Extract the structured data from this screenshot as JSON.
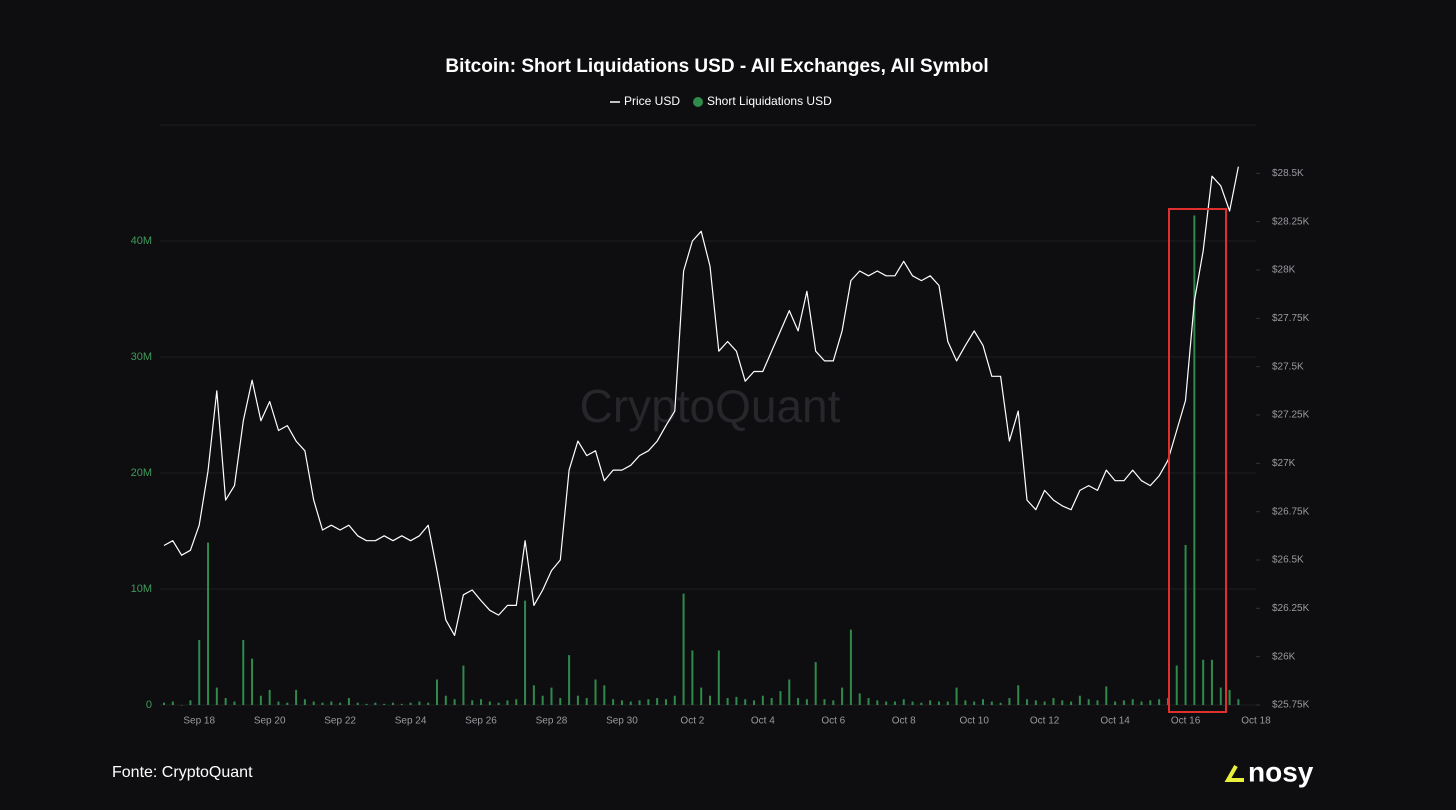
{
  "chart_data": {
    "type": "bar-line",
    "title": "Bitcoin: Short Liquidations USD - All Exchanges, All Symbol",
    "watermark": "CryptoQuant",
    "source": "Fonte: CryptoQuant",
    "brand": "nosy",
    "categories": [
      null,
      null,
      null,
      null,
      "Sep 18",
      null,
      null,
      null,
      null,
      null,
      null,
      null,
      "Sep 20",
      null,
      null,
      null,
      null,
      null,
      null,
      null,
      "Sep 22",
      null,
      null,
      null,
      null,
      null,
      null,
      null,
      "Sep 24",
      null,
      null,
      null,
      null,
      null,
      null,
      null,
      "Sep 26",
      null,
      null,
      null,
      null,
      null,
      null,
      null,
      "Sep 28",
      null,
      null,
      null,
      null,
      null,
      null,
      null,
      "Sep 30",
      null,
      null,
      null,
      null,
      null,
      null,
      null,
      "Oct 2",
      null,
      null,
      null,
      null,
      null,
      null,
      null,
      "Oct 4",
      null,
      null,
      null,
      null,
      null,
      null,
      null,
      "Oct 6",
      null,
      null,
      null,
      null,
      null,
      null,
      null,
      "Oct 8",
      null,
      null,
      null,
      null,
      null,
      null,
      null,
      "Oct 10",
      null,
      null,
      null,
      null,
      null,
      null,
      null,
      "Oct 12",
      null,
      null,
      null,
      null,
      null,
      null,
      null,
      "Oct 14",
      null,
      null,
      null,
      null,
      null,
      null,
      null,
      "Oct 16",
      null,
      null,
      null,
      null,
      null,
      null,
      null,
      "Oct 18"
    ],
    "series": [
      {
        "name": "Price USD",
        "color": "#ffffff",
        "axis": "y2",
        "kind": "line",
        "values": [
          26575,
          26600,
          26525,
          26550,
          26680,
          26960,
          27375,
          26810,
          26885,
          27220,
          27430,
          27220,
          27320,
          27170,
          27195,
          27115,
          27065,
          26810,
          26655,
          26680,
          26655,
          26680,
          26625,
          26600,
          26600,
          26625,
          26600,
          26625,
          26600,
          26625,
          26680,
          26445,
          26190,
          26110,
          26320,
          26345,
          26290,
          26240,
          26215,
          26265,
          26265,
          26600,
          26265,
          26345,
          26445,
          26500,
          26965,
          27115,
          27040,
          27065,
          26910,
          26965,
          26965,
          26990,
          27040,
          27065,
          27115,
          27195,
          27270,
          27995,
          28150,
          28200,
          28020,
          27580,
          27630,
          27580,
          27425,
          27475,
          27475,
          27580,
          27685,
          27790,
          27685,
          27890,
          27580,
          27530,
          27530,
          27685,
          27945,
          27995,
          27970,
          27995,
          27970,
          27970,
          28045,
          27970,
          27945,
          27970,
          27920,
          27630,
          27530,
          27610,
          27685,
          27610,
          27450,
          27450,
          27115,
          27270,
          26810,
          26760,
          26860,
          26810,
          26780,
          26760,
          26860,
          26885,
          26860,
          26965,
          26910,
          26910,
          26965,
          26910,
          26885,
          26935,
          27015,
          27170,
          27325,
          27840,
          28100,
          28485,
          28435,
          28305,
          28535,
          null,
          null
        ]
      },
      {
        "name": "Short Liquidations USD",
        "color": "#2f8a4c",
        "axis": "y",
        "kind": "bar",
        "values": [
          200000,
          300000,
          0,
          400000,
          5600000,
          14000000,
          1500000,
          600000,
          300000,
          5600000,
          4000000,
          800000,
          1300000,
          300000,
          200000,
          1300000,
          500000,
          300000,
          200000,
          300000,
          200000,
          600000,
          200000,
          100000,
          200000,
          100000,
          200000,
          100000,
          200000,
          300000,
          200000,
          2200000,
          800000,
          500000,
          3400000,
          400000,
          500000,
          300000,
          200000,
          400000,
          500000,
          9000000,
          1700000,
          800000,
          1500000,
          600000,
          4300000,
          800000,
          600000,
          2200000,
          1700000,
          500000,
          400000,
          300000,
          400000,
          500000,
          600000,
          500000,
          800000,
          9600000,
          4700000,
          1500000,
          800000,
          4700000,
          600000,
          700000,
          500000,
          400000,
          800000,
          600000,
          1200000,
          2200000,
          600000,
          500000,
          3700000,
          500000,
          400000,
          1500000,
          6500000,
          1000000,
          600000,
          400000,
          300000,
          300000,
          500000,
          300000,
          200000,
          400000,
          300000,
          300000,
          1500000,
          400000,
          300000,
          500000,
          300000,
          200000,
          600000,
          1700000,
          500000,
          400000,
          300000,
          600000,
          400000,
          300000,
          800000,
          500000,
          400000,
          1600000,
          300000,
          400000,
          500000,
          300000,
          400000,
          500000,
          600000,
          3400000,
          13800000,
          42200000,
          3900000,
          3900000,
          1500000,
          1300000,
          500000,
          null,
          null
        ]
      }
    ],
    "ylim": [
      0,
      50000000
    ],
    "yticks": [
      0,
      {
        "value": 10000000,
        "label": "10M"
      },
      {
        "value": 20000000,
        "label": "20M"
      },
      {
        "value": 30000000,
        "label": "30M"
      },
      {
        "value": 40000000,
        "label": "40M"
      }
    ],
    "y2lim": [
      25750,
      28750
    ],
    "y2ticks": [
      {
        "value": 25750,
        "label": "$25.75K"
      },
      {
        "value": 26000,
        "label": "$26K"
      },
      {
        "value": 26250,
        "label": "$26.25K"
      },
      {
        "value": 26500,
        "label": "$26.5K"
      },
      {
        "value": 26750,
        "label": "$26.75K"
      },
      {
        "value": 27000,
        "label": "$27K"
      },
      {
        "value": 27250,
        "label": "$27.25K"
      },
      {
        "value": 27500,
        "label": "$27.5K"
      },
      {
        "value": 27750,
        "label": "$27.75K"
      },
      {
        "value": 28000,
        "label": "$28K"
      },
      {
        "value": 28250,
        "label": "$28.25K"
      },
      {
        "value": 28500,
        "label": "$28.5K"
      }
    ],
    "grid": true
  }
}
